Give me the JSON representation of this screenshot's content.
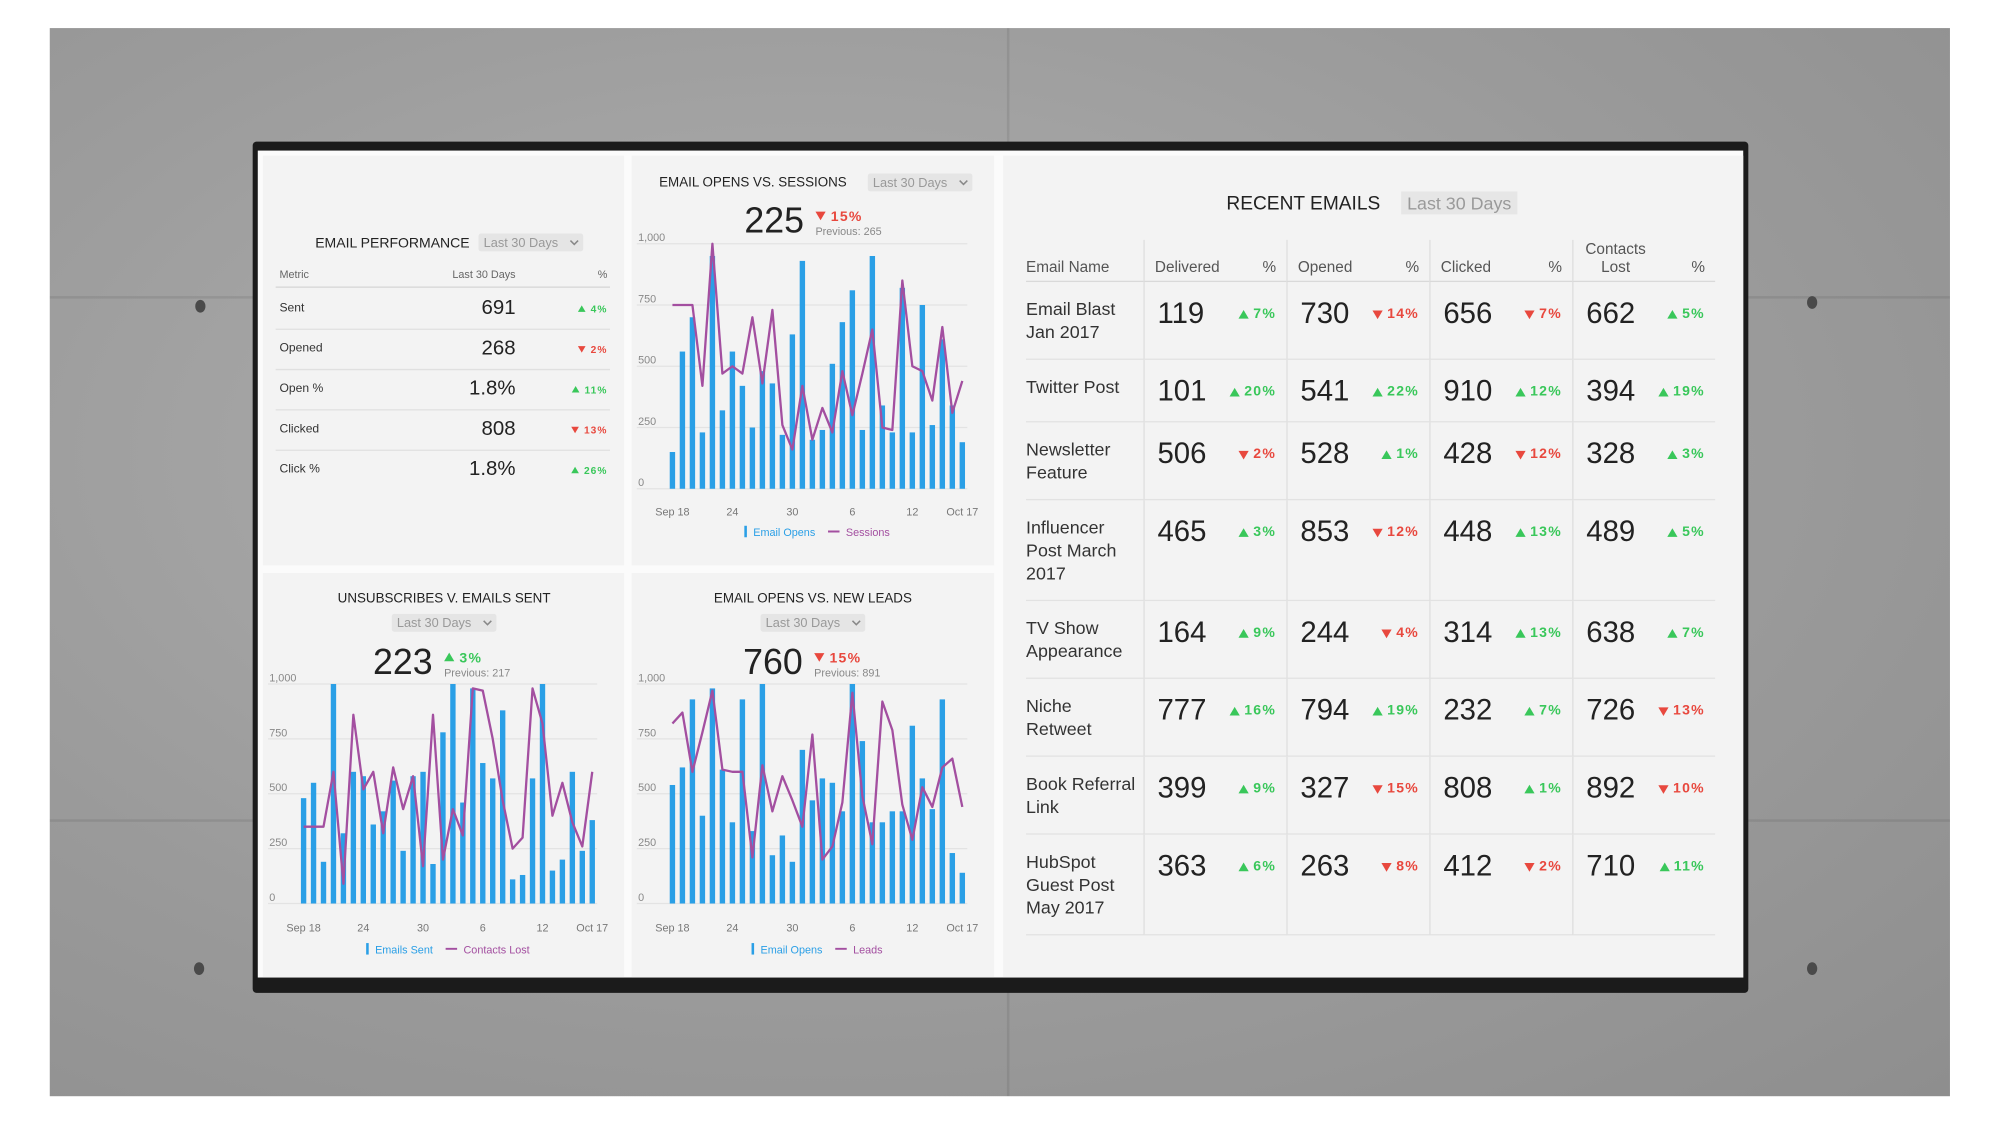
{
  "email_performance": {
    "title": "EMAIL PERFORMANCE",
    "period": "Last 30 Days",
    "columns": [
      "Metric",
      "Last 30 Days",
      "%"
    ],
    "rows": [
      {
        "metric": "Sent",
        "value": 691,
        "change": "4%",
        "direction": "up"
      },
      {
        "metric": "Opened",
        "value": 268,
        "change": "2%",
        "direction": "down"
      },
      {
        "metric": "Open %",
        "value": "1.8%",
        "change": "11%",
        "direction": "up"
      },
      {
        "metric": "Clicked",
        "value": 808,
        "change": "13%",
        "direction": "down"
      },
      {
        "metric": "Click %",
        "value": "1.8%",
        "change": "26%",
        "direction": "up"
      }
    ]
  },
  "chart_data": [
    {
      "type": "combo",
      "title": "EMAIL OPENS VS. SESSIONS",
      "period": "Last 30 Days",
      "kpi": {
        "value": 225,
        "change": "15%",
        "direction": "down",
        "previous": "Previous: 265"
      },
      "categories": [
        "Sep 18",
        null,
        null,
        null,
        null,
        null,
        "24",
        null,
        null,
        null,
        null,
        null,
        "30",
        null,
        null,
        null,
        null,
        null,
        "6",
        null,
        null,
        null,
        null,
        null,
        "12",
        null,
        null,
        null,
        null,
        "Oct 17"
      ],
      "series": [
        {
          "name": "Email Opens",
          "kind": "bar",
          "color": "#2a9fe6",
          "values": [
            150,
            560,
            700,
            230,
            950,
            320,
            560,
            420,
            250,
            480,
            430,
            220,
            630,
            930,
            200,
            240,
            510,
            680,
            810,
            240,
            950,
            340,
            230,
            820,
            230,
            750,
            260,
            610,
            340,
            190
          ]
        },
        {
          "name": "Sessions",
          "kind": "line",
          "color": "#a34fa0",
          "values": [
            750,
            750,
            750,
            420,
            1000,
            470,
            500,
            470,
            700,
            430,
            730,
            260,
            160,
            420,
            200,
            330,
            230,
            480,
            300,
            470,
            650,
            250,
            240,
            850,
            500,
            480,
            360,
            660,
            310,
            440
          ]
        }
      ],
      "ylim": [
        0,
        1000
      ],
      "yticks": [
        0,
        250,
        500,
        750,
        {
          "value": 1000,
          "label": "1,000"
        }
      ],
      "grid": true
    },
    {
      "type": "combo",
      "title": "UNSUBSCRIBES V. EMAILS SENT",
      "period": "Last 30 Days",
      "kpi": {
        "value": 223,
        "change": "3%",
        "direction": "up",
        "previous": "Previous: 217"
      },
      "categories": [
        "Sep 18",
        null,
        null,
        null,
        null,
        null,
        "24",
        null,
        null,
        null,
        null,
        null,
        "30",
        null,
        null,
        null,
        null,
        null,
        "6",
        null,
        null,
        null,
        null,
        null,
        "12",
        null,
        null,
        null,
        null,
        "Oct 17"
      ],
      "series": [
        {
          "name": "Emails Sent",
          "kind": "bar",
          "color": "#2a9fe6",
          "values": [
            480,
            550,
            190,
            1000,
            320,
            600,
            580,
            360,
            420,
            560,
            240,
            580,
            600,
            180,
            780,
            1000,
            460,
            980,
            640,
            570,
            880,
            110,
            130,
            570,
            1000,
            150,
            200,
            600,
            240,
            380
          ]
        },
        {
          "name": "Contacts Lost",
          "kind": "line",
          "color": "#a34fa0",
          "values": [
            350,
            350,
            350,
            600,
            90,
            860,
            520,
            600,
            320,
            620,
            430,
            580,
            170,
            860,
            200,
            430,
            310,
            980,
            970,
            750,
            470,
            250,
            300,
            980,
            820,
            400,
            550,
            370,
            260,
            600
          ]
        }
      ],
      "ylim": [
        0,
        1000
      ],
      "yticks": [
        0,
        250,
        500,
        750,
        {
          "value": 1000,
          "label": "1,000"
        }
      ],
      "grid": true
    },
    {
      "type": "combo",
      "title": "EMAIL OPENS VS. NEW LEADS",
      "period": "Last 30 Days",
      "kpi": {
        "value": 760,
        "change": "15%",
        "direction": "down",
        "previous": "Previous: 891"
      },
      "categories": [
        "Sep 18",
        null,
        null,
        null,
        null,
        null,
        "24",
        null,
        null,
        null,
        null,
        null,
        "30",
        null,
        null,
        null,
        null,
        null,
        "6",
        null,
        null,
        null,
        null,
        null,
        "12",
        null,
        null,
        null,
        null,
        "Oct 17"
      ],
      "series": [
        {
          "name": "Email Opens",
          "kind": "bar",
          "color": "#2a9fe6",
          "values": [
            540,
            620,
            930,
            400,
            980,
            610,
            370,
            930,
            330,
            1000,
            220,
            310,
            190,
            700,
            470,
            570,
            550,
            420,
            1000,
            740,
            370,
            370,
            420,
            420,
            810,
            570,
            430,
            930,
            230,
            140
          ]
        },
        {
          "name": "Leads",
          "kind": "line",
          "color": "#a34fa0",
          "values": [
            820,
            870,
            600,
            780,
            970,
            610,
            600,
            600,
            210,
            630,
            420,
            580,
            470,
            350,
            770,
            200,
            260,
            460,
            960,
            490,
            270,
            920,
            790,
            450,
            290,
            530,
            440,
            620,
            660,
            440
          ]
        }
      ],
      "ylim": [
        0,
        1000
      ],
      "yticks": [
        0,
        250,
        500,
        750,
        {
          "value": 1000,
          "label": "1,000"
        }
      ],
      "grid": true
    }
  ],
  "recent_emails": {
    "title": "RECENT EMAILS",
    "period": "Last 30 Days",
    "columns": [
      "Email Name",
      "Delivered",
      "%",
      "Opened",
      "%",
      "Clicked",
      "%",
      "Contacts Lost",
      "%"
    ],
    "rows": [
      {
        "name": "Email Blast Jan 2017",
        "cells": [
          {
            "value": 119,
            "change": "7%",
            "direction": "up"
          },
          {
            "value": 730,
            "change": "14%",
            "direction": "down"
          },
          {
            "value": 656,
            "change": "7%",
            "direction": "down"
          },
          {
            "value": 662,
            "change": "5%",
            "direction": "up"
          }
        ]
      },
      {
        "name": "Twitter Post",
        "cells": [
          {
            "value": 101,
            "change": "20%",
            "direction": "up"
          },
          {
            "value": 541,
            "change": "22%",
            "direction": "up"
          },
          {
            "value": 910,
            "change": "12%",
            "direction": "up"
          },
          {
            "value": 394,
            "change": "19%",
            "direction": "up"
          }
        ]
      },
      {
        "name": "Newsletter Feature",
        "cells": [
          {
            "value": 506,
            "change": "2%",
            "direction": "down"
          },
          {
            "value": 528,
            "change": "1%",
            "direction": "up"
          },
          {
            "value": 428,
            "change": "12%",
            "direction": "down"
          },
          {
            "value": 328,
            "change": "3%",
            "direction": "up"
          }
        ]
      },
      {
        "name": "Influencer Post March 2017",
        "cells": [
          {
            "value": 465,
            "change": "3%",
            "direction": "up"
          },
          {
            "value": 853,
            "change": "12%",
            "direction": "down"
          },
          {
            "value": 448,
            "change": "13%",
            "direction": "up"
          },
          {
            "value": 489,
            "change": "5%",
            "direction": "up"
          }
        ]
      },
      {
        "name": "TV Show Appearance",
        "cells": [
          {
            "value": 164,
            "change": "9%",
            "direction": "up"
          },
          {
            "value": 244,
            "change": "4%",
            "direction": "down"
          },
          {
            "value": 314,
            "change": "13%",
            "direction": "up"
          },
          {
            "value": 638,
            "change": "7%",
            "direction": "up"
          }
        ]
      },
      {
        "name": "Niche Retweet",
        "cells": [
          {
            "value": 777,
            "change": "16%",
            "direction": "up"
          },
          {
            "value": 794,
            "change": "19%",
            "direction": "up"
          },
          {
            "value": 232,
            "change": "7%",
            "direction": "up"
          },
          {
            "value": 726,
            "change": "13%",
            "direction": "down"
          }
        ]
      },
      {
        "name": "Book Referral Link",
        "cells": [
          {
            "value": 399,
            "change": "9%",
            "direction": "up"
          },
          {
            "value": 327,
            "change": "15%",
            "direction": "down"
          },
          {
            "value": 808,
            "change": "1%",
            "direction": "up"
          },
          {
            "value": 892,
            "change": "10%",
            "direction": "down"
          }
        ]
      },
      {
        "name": "HubSpot Guest Post May 2017",
        "cells": [
          {
            "value": 363,
            "change": "6%",
            "direction": "up"
          },
          {
            "value": 263,
            "change": "8%",
            "direction": "down"
          },
          {
            "value": 412,
            "change": "2%",
            "direction": "down"
          },
          {
            "value": 710,
            "change": "11%",
            "direction": "up"
          }
        ]
      }
    ]
  }
}
